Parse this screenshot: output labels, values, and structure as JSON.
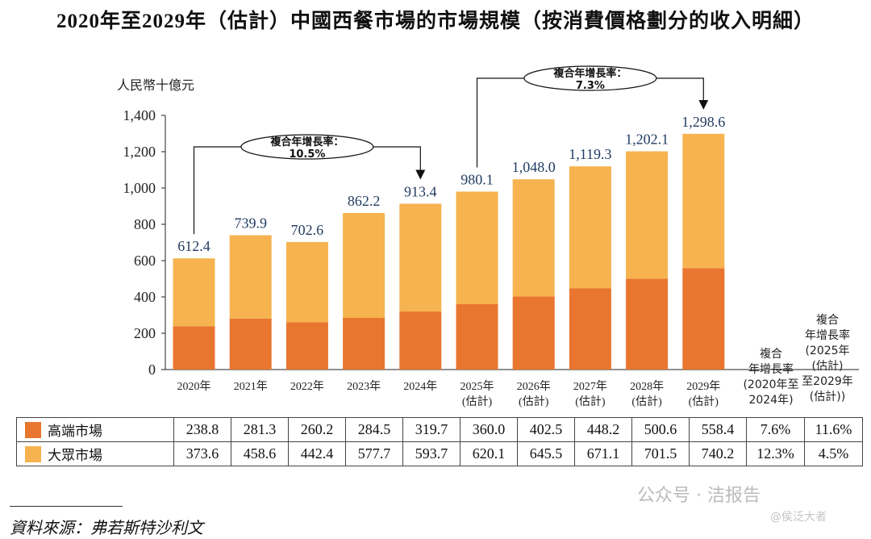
{
  "title": "2020年至2029年（估計）中國西餐市場的市場規模（按消費價格劃分的收入明細）",
  "chart_data": {
    "type": "bar",
    "stacked": true,
    "ylabel": "人民幣十億元",
    "ylim": [
      0,
      1400
    ],
    "yticks": [
      "0",
      "200",
      "400",
      "600",
      "800",
      "1,000",
      "1,200",
      "1,400"
    ],
    "categories": [
      [
        "2020年"
      ],
      [
        "2021年"
      ],
      [
        "2022年"
      ],
      [
        "2023年"
      ],
      [
        "2024年"
      ],
      [
        "2025年",
        "(估計)"
      ],
      [
        "2026年",
        "(估計)"
      ],
      [
        "2027年",
        "(估計)"
      ],
      [
        "2028年",
        "(估計)"
      ],
      [
        "2029年",
        "(估計)"
      ]
    ],
    "series": [
      {
        "name": "高端市場",
        "color": "#e8762f",
        "values": [
          238.8,
          281.3,
          260.2,
          284.5,
          319.7,
          360.0,
          402.5,
          448.2,
          500.6,
          558.4
        ]
      },
      {
        "name": "大眾市場",
        "color": "#f6b34f",
        "values": [
          373.6,
          458.6,
          442.4,
          577.7,
          593.7,
          620.1,
          645.5,
          671.1,
          701.5,
          740.2
        ]
      }
    ],
    "totals": [
      612.4,
      739.9,
      702.6,
      862.2,
      913.4,
      980.1,
      1048.0,
      1119.3,
      1202.1,
      1298.6
    ],
    "total_labels": [
      "612.4",
      "739.9",
      "702.6",
      "862.2",
      "913.4",
      "980.1",
      "1,048.0",
      "1,119.3",
      "1,202.1",
      "1,298.6"
    ],
    "cagr_annotations": [
      {
        "label": "複合年增長率：",
        "value": "10.5%",
        "from": "2020年",
        "to": "2024年"
      },
      {
        "label": "複合年增長率：",
        "value": "7.3%",
        "from": "2025年",
        "to": "2029年"
      }
    ]
  },
  "table": {
    "cagr_headers": [
      [
        "複合",
        "年增長率",
        "(2020年至",
        "2024年)"
      ],
      [
        "複合",
        "年增長率",
        "(2025年",
        "(估計)",
        "至2029年",
        "(估計))"
      ]
    ],
    "rows": [
      {
        "label": "高端市場",
        "color": "#e8762f",
        "values": [
          "238.8",
          "281.3",
          "260.2",
          "284.5",
          "319.7",
          "360.0",
          "402.5",
          "448.2",
          "500.6",
          "558.4"
        ],
        "cagr": [
          "7.6%",
          "11.6%"
        ]
      },
      {
        "label": "大眾市場",
        "color": "#f6b34f",
        "values": [
          "373.6",
          "458.6",
          "442.4",
          "577.7",
          "593.7",
          "620.1",
          "645.5",
          "671.1",
          "701.5",
          "740.2"
        ],
        "cagr": [
          "12.3%",
          "4.5%"
        ]
      }
    ]
  },
  "source": "資料來源：弗若斯特沙利文",
  "watermark": "公众号 · 洁报告",
  "watermark2": "@侯泛大者"
}
